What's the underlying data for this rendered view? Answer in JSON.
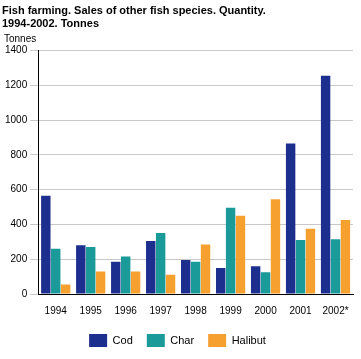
{
  "chart_data": {
    "type": "bar",
    "title": [
      "Fish farming. Sales of other fish species. Quantity.",
      "1994-2002. Tonnes"
    ],
    "ylabel": "Tonnes",
    "categories": [
      "1994",
      "1995",
      "1996",
      "1997",
      "1998",
      "1999",
      "2000",
      "2001",
      "2002*"
    ],
    "series": [
      {
        "name": "Cod",
        "color": "#1c2f8e",
        "values": [
          565,
          280,
          185,
          305,
          195,
          150,
          160,
          865,
          1255
        ]
      },
      {
        "name": "Char",
        "color": "#1b9a9a",
        "values": [
          260,
          270,
          215,
          350,
          185,
          495,
          125,
          310,
          315
        ]
      },
      {
        "name": "Halibut",
        "color": "#f6a030",
        "values": [
          55,
          130,
          130,
          110,
          285,
          450,
          545,
          375,
          425
        ]
      }
    ],
    "ylim": [
      0,
      1400
    ],
    "yticks": [
      0,
      200,
      400,
      600,
      800,
      1000,
      1200,
      1400
    ],
    "grid": true,
    "legend": "bottom"
  }
}
